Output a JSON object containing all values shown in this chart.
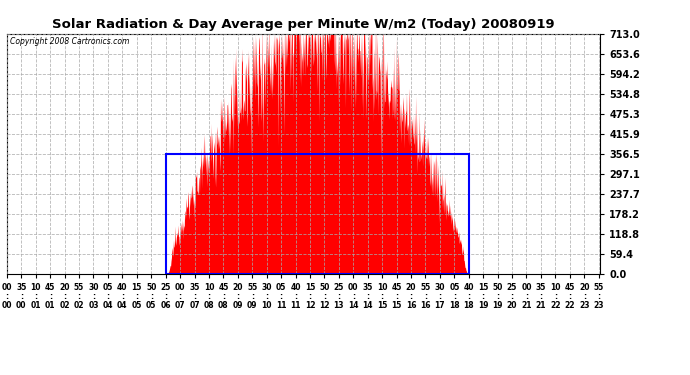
{
  "title": "Solar Radiation & Day Average per Minute W/m2 (Today) 20080919",
  "copyright": "Copyright 2008 Cartronics.com",
  "ymin": 0.0,
  "ymax": 713.0,
  "ytick_values": [
    0.0,
    59.4,
    118.8,
    178.2,
    237.7,
    297.1,
    356.5,
    415.9,
    475.3,
    534.8,
    594.2,
    653.6,
    713.0
  ],
  "background_color": "#ffffff",
  "fill_color": "#ff0000",
  "average_box_color": "#0000ff",
  "average_value": 356.5,
  "sunrise_minute": 386,
  "sunset_minute": 1121,
  "total_minutes": 1440,
  "tick_step_minutes": 35,
  "grid_color": "#aaaaaa"
}
